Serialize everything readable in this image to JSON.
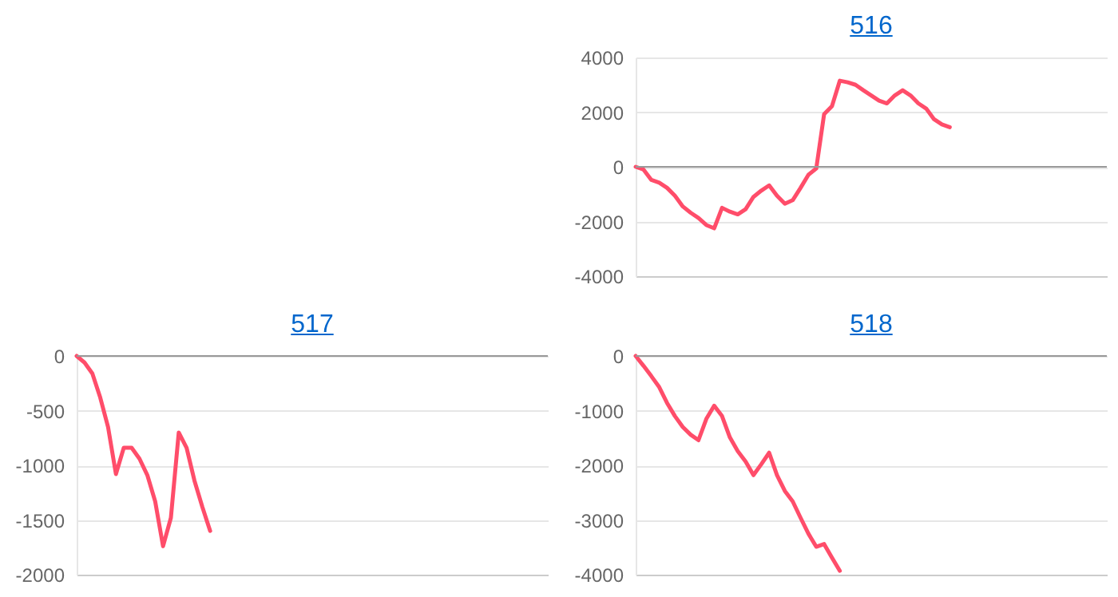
{
  "chart_data": [
    {
      "type": "line",
      "title": "516",
      "categories": [
        null,
        null,
        null,
        null,
        null,
        null,
        null,
        null,
        null,
        null,
        null,
        null,
        null,
        null,
        null,
        null,
        null,
        null,
        null,
        null,
        null,
        null,
        null,
        null,
        null,
        null,
        null,
        null,
        null,
        null,
        null,
        null,
        null,
        null,
        null,
        null,
        null,
        null,
        null,
        null,
        null,
        null,
        null,
        null,
        null,
        null,
        null,
        null,
        null,
        null,
        null,
        null,
        null,
        null,
        null,
        null,
        null,
        null,
        null,
        null,
        null
      ],
      "series": [
        {
          "color": "#ff4d6a",
          "values": [
            0,
            -100,
            -480,
            -580,
            -770,
            -1060,
            -1450,
            -1680,
            -1870,
            -2130,
            -2250,
            -1500,
            -1640,
            -1740,
            -1550,
            -1100,
            -870,
            -680,
            -1060,
            -1350,
            -1220,
            -770,
            -290,
            -60,
            1930,
            2220,
            3150,
            3090,
            3000,
            2800,
            2610,
            2420,
            2320,
            2610,
            2800,
            2610,
            2320,
            2130,
            1740,
            1550,
            1450,
            null,
            null,
            null,
            null,
            null,
            null,
            null,
            null,
            null,
            null,
            null,
            null,
            null,
            null,
            null,
            null,
            null,
            null,
            null,
            null
          ]
        }
      ],
      "ylim": [
        -4000,
        4000
      ],
      "yticks": [
        -4000,
        -2000,
        0,
        2000,
        4000
      ],
      "grid": "y",
      "tick_labels": "y",
      "marker": "none",
      "line_style": "solid",
      "ref_lines": [
        {
          "axis": "y",
          "value": 0,
          "color": "#999999"
        }
      ]
    },
    {
      "type": "line",
      "title": "517",
      "categories": [
        null,
        null,
        null,
        null,
        null,
        null,
        null,
        null,
        null,
        null,
        null,
        null,
        null,
        null,
        null,
        null,
        null,
        null,
        null,
        null,
        null,
        null,
        null,
        null,
        null,
        null,
        null,
        null,
        null,
        null,
        null,
        null,
        null,
        null,
        null,
        null,
        null,
        null,
        null,
        null,
        null,
        null,
        null,
        null,
        null,
        null,
        null,
        null,
        null,
        null,
        null,
        null,
        null,
        null,
        null,
        null,
        null,
        null,
        null,
        null,
        null
      ],
      "series": [
        {
          "color": "#ff4d6a",
          "values": [
            0,
            -60,
            -160,
            -380,
            -650,
            -1080,
            -840,
            -840,
            -940,
            -1090,
            -1330,
            -1740,
            -1480,
            -700,
            -840,
            -1140,
            -1380,
            -1600,
            null,
            null,
            null,
            null,
            null,
            null,
            null,
            null,
            null,
            null,
            null,
            null,
            null,
            null,
            null,
            null,
            null,
            null,
            null,
            null,
            null,
            null,
            null,
            null,
            null,
            null,
            null,
            null,
            null,
            null,
            null,
            null,
            null,
            null,
            null,
            null,
            null,
            null,
            null,
            null,
            null,
            null,
            null
          ]
        }
      ],
      "ylim": [
        -2000,
        0
      ],
      "yticks": [
        -2000,
        -1500,
        -1000,
        -500,
        0
      ],
      "grid": "y",
      "tick_labels": "y",
      "marker": "none",
      "line_style": "solid",
      "ref_lines": [
        {
          "axis": "y",
          "value": 0,
          "color": "#999999"
        }
      ]
    },
    {
      "type": "line",
      "title": "518",
      "categories": [
        null,
        null,
        null,
        null,
        null,
        null,
        null,
        null,
        null,
        null,
        null,
        null,
        null,
        null,
        null,
        null,
        null,
        null,
        null,
        null,
        null,
        null,
        null,
        null,
        null,
        null,
        null,
        null,
        null,
        null,
        null,
        null,
        null,
        null,
        null,
        null,
        null,
        null,
        null,
        null,
        null,
        null,
        null,
        null,
        null,
        null,
        null,
        null,
        null,
        null,
        null,
        null,
        null,
        null,
        null,
        null,
        null,
        null,
        null,
        null,
        null
      ],
      "series": [
        {
          "color": "#ff4d6a",
          "values": [
            0,
            -180,
            -370,
            -570,
            -860,
            -1100,
            -1300,
            -1440,
            -1540,
            -1150,
            -910,
            -1100,
            -1490,
            -1740,
            -1930,
            -2180,
            -1980,
            -1770,
            -2180,
            -2470,
            -2660,
            -2960,
            -3250,
            -3490,
            -3440,
            -3690,
            -3930,
            null,
            null,
            null,
            null,
            null,
            null,
            null,
            null,
            null,
            null,
            null,
            null,
            null,
            null,
            null,
            null,
            null,
            null,
            null,
            null,
            null,
            null,
            null,
            null,
            null,
            null,
            null,
            null,
            null,
            null,
            null,
            null,
            null,
            null
          ]
        }
      ],
      "ylim": [
        -4000,
        0
      ],
      "yticks": [
        -4000,
        -3000,
        -2000,
        -1000,
        0
      ],
      "grid": "y",
      "tick_labels": "y",
      "marker": "none",
      "line_style": "solid",
      "ref_lines": [
        {
          "axis": "y",
          "value": 0,
          "color": "#999999"
        }
      ]
    }
  ]
}
